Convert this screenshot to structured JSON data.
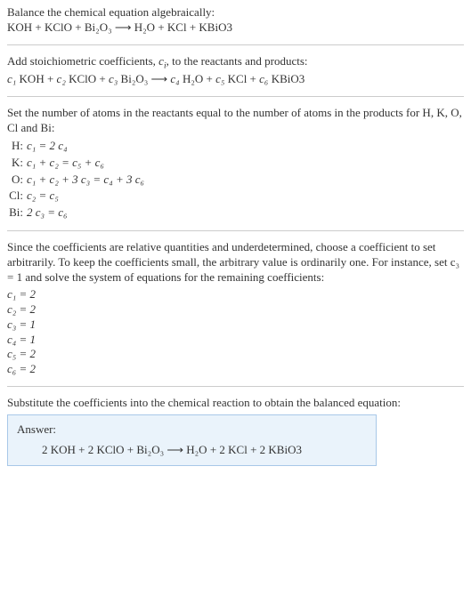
{
  "colors": {
    "text": "#333333",
    "rule": "#cccccc",
    "answer_border": "#a8c8e8",
    "answer_bg": "#eaf3fb",
    "page_bg": "#ffffff"
  },
  "fonts": {
    "family": "Georgia, 'Times New Roman', serif",
    "size_pt": 10,
    "answer_label_size_pt": 10
  },
  "block1": {
    "line1": "Balance the chemical equation algebraically:",
    "equation": "KOH + KClO + Bi₂O₃  ⟶  H₂O + KCl + KBiO3"
  },
  "block2": {
    "line1_a": "Add stoichiometric coefficients, ",
    "ci": "c",
    "ci_sub": "i",
    "line1_b": ", to the reactants and products:",
    "equation_parts": {
      "c1": "c₁",
      "r1": " KOH + ",
      "c2": "c₂",
      "r2": " KClO + ",
      "c3": "c₃",
      "r3": " Bi₂O₃  ⟶  ",
      "c4": "c₄",
      "r4": " H₂O + ",
      "c5": "c₅",
      "r5": " KCl + ",
      "c6": "c₆",
      "r6": " KBiO3"
    }
  },
  "block3": {
    "intro": "Set the number of atoms in the reactants equal to the number of atoms in the products for H, K, O, Cl and Bi:",
    "rows": [
      {
        "el": "H:",
        "eq": "c₁ = 2 c₄"
      },
      {
        "el": "K:",
        "eq": "c₁ + c₂ = c₅ + c₆"
      },
      {
        "el": "O:",
        "eq": "c₁ + c₂ + 3 c₃ = c₄ + 3 c₆"
      },
      {
        "el": "Cl:",
        "eq": "c₂ = c₅"
      },
      {
        "el": "Bi:",
        "eq": "2 c₃ = c₆"
      }
    ]
  },
  "block4": {
    "para": "Since the coefficients are relative quantities and underdetermined, choose a coefficient to set arbitrarily. To keep the coefficients small, the arbitrary value is ordinarily one. For instance, set c₃ = 1 and solve the system of equations for the remaining coefficients:",
    "coeffs": [
      "c₁ = 2",
      "c₂ = 2",
      "c₃ = 1",
      "c₄ = 1",
      "c₅ = 2",
      "c₆ = 2"
    ]
  },
  "block5": {
    "para": "Substitute the coefficients into the chemical reaction to obtain the balanced equation:",
    "answer_label": "Answer:",
    "answer_eq": "2 KOH + 2 KClO + Bi₂O₃  ⟶  H₂O + 2 KCl + 2 KBiO3"
  }
}
